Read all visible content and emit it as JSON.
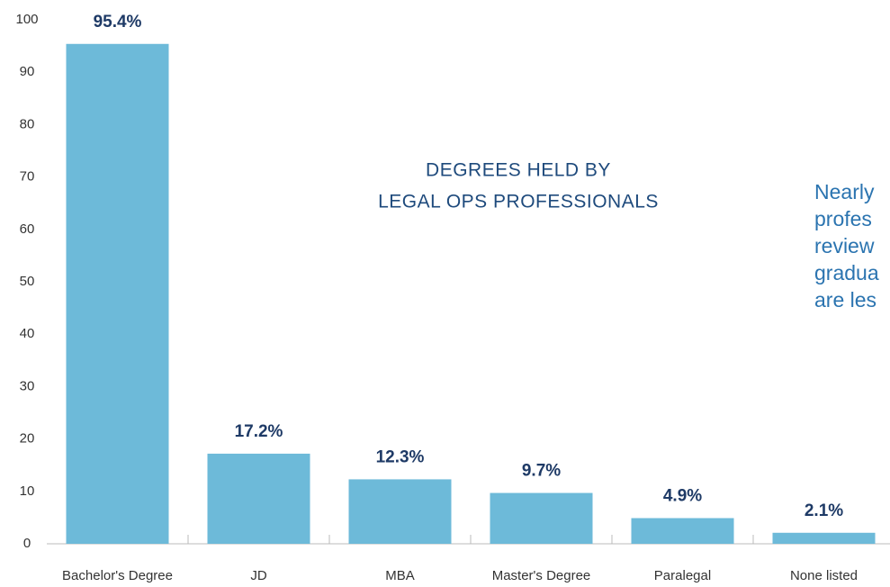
{
  "chart_data": {
    "type": "bar",
    "title": [
      "DEGREES HELD BY",
      "LEGAL OPS PROFESSIONALS"
    ],
    "annotation": [
      "Nearly",
      "profes",
      "review",
      "gradua",
      "are les"
    ],
    "categories": [
      "Bachelor's Degree",
      "JD",
      "MBA",
      "Master's Degree",
      "Paralegal",
      "None listed"
    ],
    "values": [
      95.4,
      17.2,
      12.3,
      9.7,
      4.9,
      2.1
    ],
    "value_labels": [
      "95.4%",
      "17.2%",
      "12.3%",
      "9.7%",
      "4.9%",
      "2.1%"
    ],
    "color": "#6dbad9",
    "ylim": [
      0,
      100
    ],
    "yticks": [
      0,
      10,
      20,
      30,
      40,
      50,
      60,
      70,
      80,
      90,
      100
    ],
    "grid": false
  }
}
